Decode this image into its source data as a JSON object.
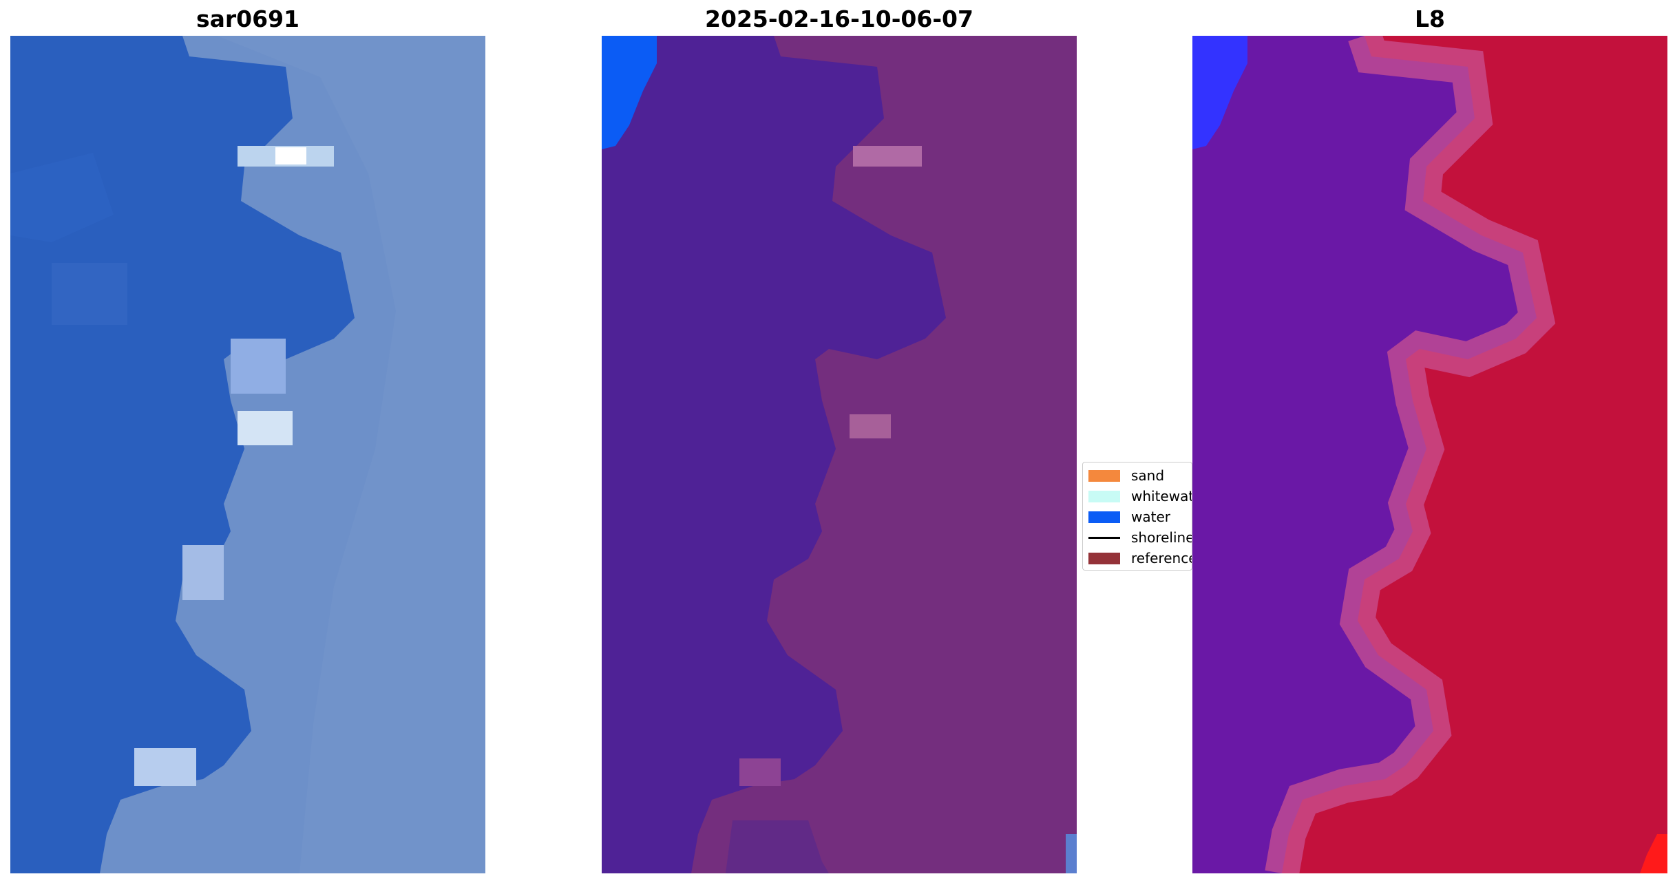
{
  "panels": [
    {
      "title": "sar0691"
    },
    {
      "title": "2025-02-16-10-06-07"
    },
    {
      "title": "L8"
    }
  ],
  "legend": {
    "items": [
      {
        "label": "sand",
        "color": "#f4883d",
        "kind": "patch"
      },
      {
        "label": "whitewater",
        "color": "#c8fbf5",
        "kind": "patch"
      },
      {
        "label": "water",
        "color": "#0b5cf5",
        "kind": "patch"
      },
      {
        "label": "shoreline",
        "color": "#000000",
        "kind": "line"
      },
      {
        "label": "reference",
        "color": "#943238",
        "kind": "patch"
      }
    ]
  },
  "colors": {
    "rgb_ocean": "#2a5fbe",
    "rgb_land": "#6d90c9",
    "class_ocean": "#4f2296",
    "class_land": "#742e7e",
    "class_water": "#0b5cf5",
    "mndwi_ocean": "#6a18a6",
    "mndwi_land": "#c3113c",
    "mndwi_water": "#3333ff"
  }
}
